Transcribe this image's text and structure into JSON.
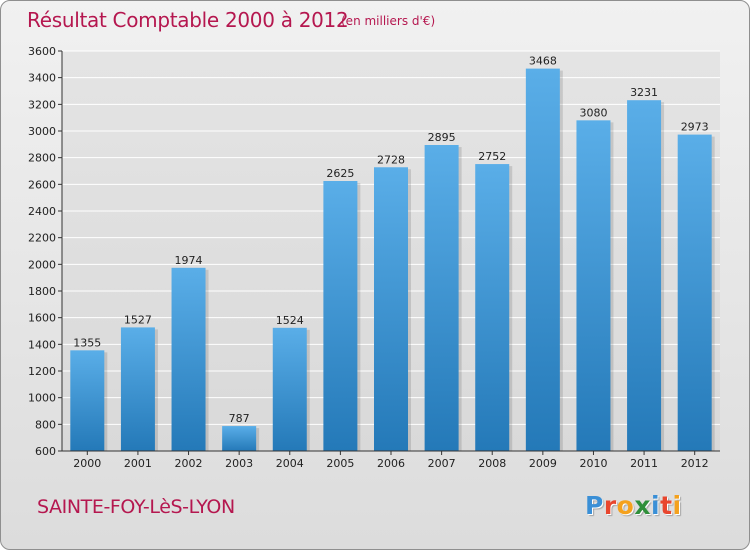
{
  "header": {
    "title": "Résultat Comptable 2000 à 2012",
    "subtitle": "(en milliers d'€)"
  },
  "footer": {
    "city": "SAINTE-FOY-LèS-LYON",
    "logo_text": "Proxiti",
    "logo_letter_colors": [
      "#3a8fd6",
      "#e8462e",
      "#f4a11d",
      "#2f8f3a",
      "#3a8fd6",
      "#e8462e",
      "#f4a11d"
    ]
  },
  "colors": {
    "bar_top": "#5aaee8",
    "bar_bottom": "#2479b8",
    "grid": "#ffffff",
    "title": "#b5174f"
  },
  "chart_data": {
    "type": "bar",
    "title": "Résultat Comptable 2000 à 2012",
    "subtitle": "(en milliers d'€)",
    "xlabel": "",
    "ylabel": "",
    "categories": [
      "2000",
      "2001",
      "2002",
      "2003",
      "2004",
      "2005",
      "2006",
      "2007",
      "2008",
      "2009",
      "2010",
      "2011",
      "2012"
    ],
    "values": [
      1355,
      1527,
      1974,
      787,
      1524,
      2625,
      2728,
      2895,
      2752,
      3468,
      3080,
      3231,
      2973
    ],
    "ylim": [
      600,
      3600
    ],
    "yticks": [
      600,
      800,
      1000,
      1200,
      1400,
      1600,
      1800,
      2000,
      2200,
      2400,
      2600,
      2800,
      3000,
      3200,
      3400,
      3600
    ],
    "grid": true,
    "legend": "none"
  }
}
